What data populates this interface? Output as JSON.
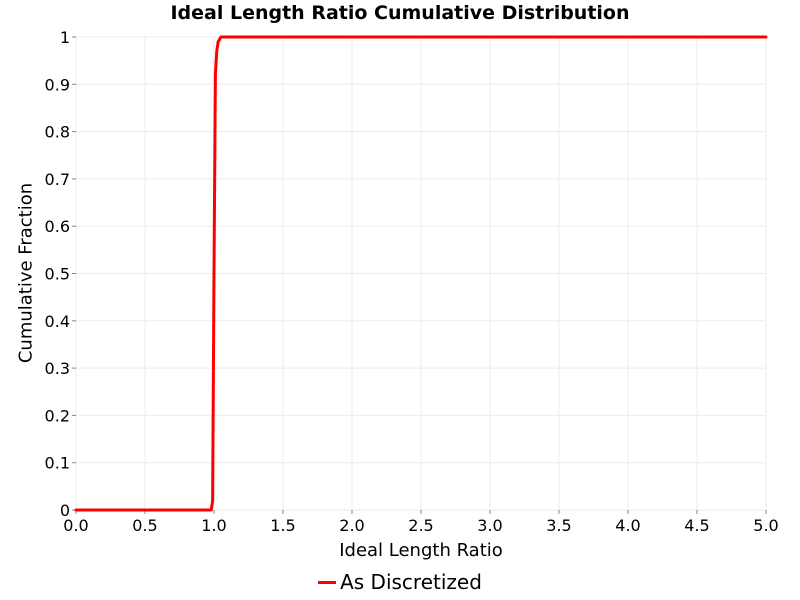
{
  "chart_data": {
    "type": "line",
    "title": "Ideal Length Ratio Cumulative Distribution",
    "xlabel": "Ideal Length Ratio",
    "ylabel": "Cumulative Fraction",
    "xlim": [
      0,
      5
    ],
    "ylim": [
      0,
      1
    ],
    "x_ticks": [
      "0.0",
      "0.5",
      "1.0",
      "1.5",
      "2.0",
      "2.5",
      "3.0",
      "3.5",
      "4.0",
      "4.5",
      "5.0"
    ],
    "y_ticks": [
      "0",
      "0.1",
      "0.2",
      "0.3",
      "0.4",
      "0.5",
      "0.6",
      "0.7",
      "0.8",
      "0.9",
      "1"
    ],
    "grid": true,
    "legend_position": "bottom",
    "series": [
      {
        "name": "As Discretized",
        "color": "#ff0000",
        "x": [
          0.0,
          0.98,
          0.99,
          1.0,
          1.01,
          1.02,
          1.03,
          1.05,
          5.0
        ],
        "y": [
          0.0,
          0.0,
          0.02,
          0.5,
          0.92,
          0.97,
          0.99,
          1.0,
          1.0
        ]
      }
    ]
  }
}
